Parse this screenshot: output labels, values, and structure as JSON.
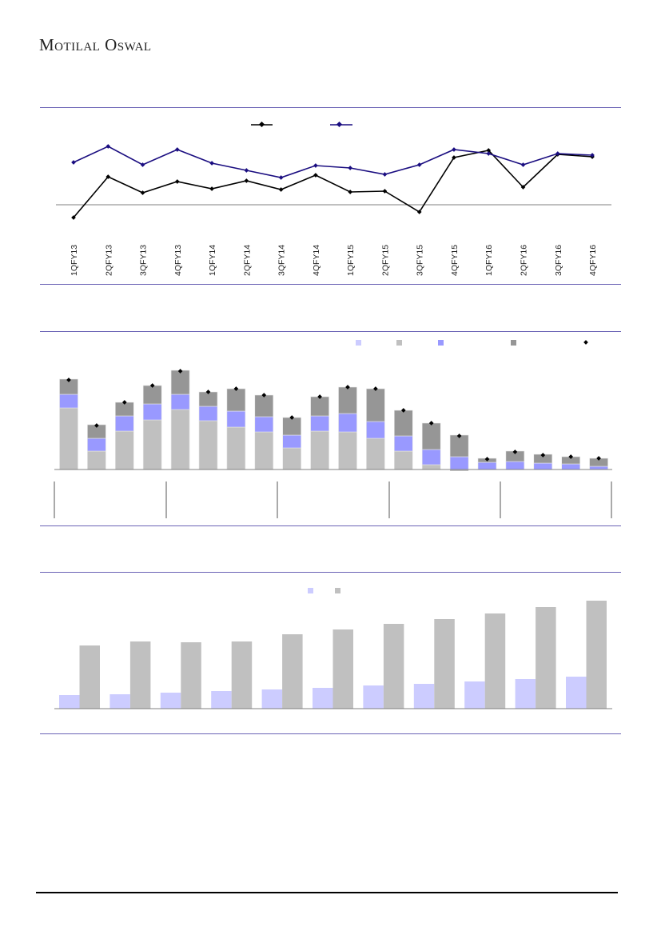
{
  "header": {
    "logo_text": "Motilal Oswal"
  },
  "colors": {
    "rule": "#6b63b5",
    "line_black": "#000000",
    "line_blue": "#1a0d80",
    "bar_light_gray": "#c0c0c0",
    "bar_blue": "#9999ff",
    "bar_dark_gray": "#969696",
    "bar_lavender": "#ccccff",
    "bar_gray": "#c0c0c0"
  },
  "chart_data": [
    {
      "type": "line",
      "title": "",
      "categories": [
        "1QFY13",
        "2QFY13",
        "3QFY13",
        "4QFY13",
        "1QFY14",
        "2QFY14",
        "3QFY14",
        "4QFY14",
        "1QFY15",
        "2QFY15",
        "3QFY15",
        "4QFY15",
        "1QFY16",
        "2QFY16",
        "3QFY16",
        "4QFY16"
      ],
      "series": [
        {
          "name": "",
          "color": "#000000",
          "values": [
            -16,
            35,
            15,
            29,
            20,
            30,
            19,
            37,
            16,
            17,
            -9,
            59,
            68,
            22,
            63,
            60
          ]
        },
        {
          "name": "",
          "color": "#1a0d80",
          "values": [
            53,
            73,
            50,
            69,
            52,
            43,
            34,
            49,
            46,
            38,
            50,
            69,
            64,
            50,
            64,
            62
          ]
        }
      ],
      "ylim": [
        -20,
        80
      ],
      "legend": "top-center"
    },
    {
      "type": "bar",
      "stacked": true,
      "title": "",
      "categories": [
        "",
        "",
        "",
        "",
        "",
        "",
        "",
        "",
        "",
        "",
        "",
        "",
        "",
        "",
        "",
        "",
        "",
        "",
        "",
        ""
      ],
      "series": [
        {
          "name": "",
          "color": "#c0c0c0",
          "values": [
            77,
            23,
            48,
            62,
            75,
            61,
            53,
            47,
            27,
            48,
            47,
            39,
            23,
            6,
            -2,
            0,
            0,
            0,
            0,
            0
          ]
        },
        {
          "name": "",
          "color": "#9999ff",
          "values": [
            17,
            16,
            19,
            20,
            19,
            18,
            20,
            19,
            16,
            19,
            23,
            21,
            19,
            19,
            16,
            9,
            10,
            8,
            7,
            4
          ]
        },
        {
          "name": "",
          "color": "#969696",
          "values": [
            19,
            17,
            17,
            23,
            30,
            18,
            28,
            27,
            22,
            24,
            33,
            41,
            32,
            33,
            27,
            5,
            13,
            11,
            9,
            10
          ]
        }
      ],
      "total_markers": {
        "name": "",
        "values": [
          112,
          55,
          84,
          105,
          123,
          97,
          101,
          93,
          65,
          91,
          103,
          101,
          74,
          58,
          42,
          13,
          22,
          18,
          16,
          14
        ]
      },
      "legend": "top-right",
      "legend_swatches": [
        "#ccccff",
        "#c0c0c0",
        "#9999ff",
        "#969696",
        "marker"
      ]
    },
    {
      "type": "bar",
      "title": "",
      "categories": [
        "",
        "",
        "",
        "",
        "",
        "",
        "",
        "",
        "",
        "",
        ""
      ],
      "series": [
        {
          "name": "",
          "color": "#ccccff",
          "values": [
            17,
            18,
            20,
            22,
            24,
            26,
            29,
            31,
            34,
            37,
            40
          ]
        },
        {
          "name": "",
          "color": "#c0c0c0",
          "values": [
            79,
            84,
            83,
            84,
            93,
            99,
            106,
            112,
            119,
            127,
            135
          ]
        }
      ],
      "legend": "top-center"
    }
  ]
}
